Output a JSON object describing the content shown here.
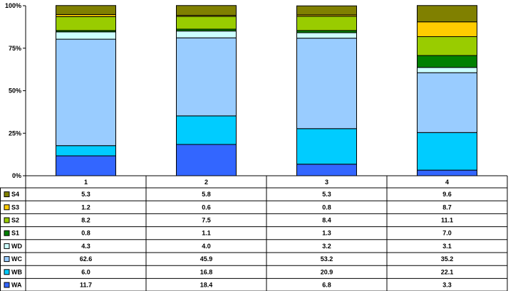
{
  "chart_data": {
    "type": "bar",
    "stacked": true,
    "percent": true,
    "categories": [
      "1",
      "2",
      "3",
      "4"
    ],
    "ylim": [
      0,
      100
    ],
    "yticks": [
      "0%",
      "25%",
      "50%",
      "75%",
      "100%"
    ],
    "grid": false,
    "legend_placement": "left, inside data table",
    "series": [
      {
        "name": "WA",
        "color": "#3366ff",
        "values": [
          11.7,
          18.4,
          6.8,
          3.3
        ]
      },
      {
        "name": "WB",
        "color": "#00ccff",
        "values": [
          6.0,
          16.8,
          20.9,
          22.1
        ]
      },
      {
        "name": "WC",
        "color": "#99ccff",
        "values": [
          62.6,
          45.9,
          53.2,
          35.2
        ]
      },
      {
        "name": "WD",
        "color": "#ccffff",
        "values": [
          4.3,
          4.0,
          3.2,
          3.1
        ]
      },
      {
        "name": "S1",
        "color": "#008000",
        "values": [
          0.8,
          1.1,
          1.3,
          7.0
        ]
      },
      {
        "name": "S2",
        "color": "#99cc00",
        "values": [
          8.2,
          7.5,
          8.4,
          11.1
        ]
      },
      {
        "name": "S3",
        "color": "#ffcc00",
        "values": [
          1.2,
          0.6,
          0.8,
          8.7
        ]
      },
      {
        "name": "S4",
        "color": "#808000",
        "values": [
          5.3,
          5.8,
          5.3,
          9.6
        ]
      }
    ],
    "table_labels": [
      [
        "5.3",
        "5.8",
        "5.3",
        "9.6"
      ],
      [
        "1.2",
        "0.6",
        "0.8",
        "8.7"
      ],
      [
        "8.2",
        "7.5",
        "8.4",
        "11.1"
      ],
      [
        "0.8",
        "1.1",
        "1.3",
        "7.0"
      ],
      [
        "4.3",
        "4.0",
        "3.2",
        "3.1"
      ],
      [
        "62.6",
        "45.9",
        "53.2",
        "35.2"
      ],
      [
        "6.0",
        "16.8",
        "20.9",
        "22.1"
      ],
      [
        "11.7",
        "18.4",
        "6.8",
        "3.3"
      ]
    ]
  }
}
